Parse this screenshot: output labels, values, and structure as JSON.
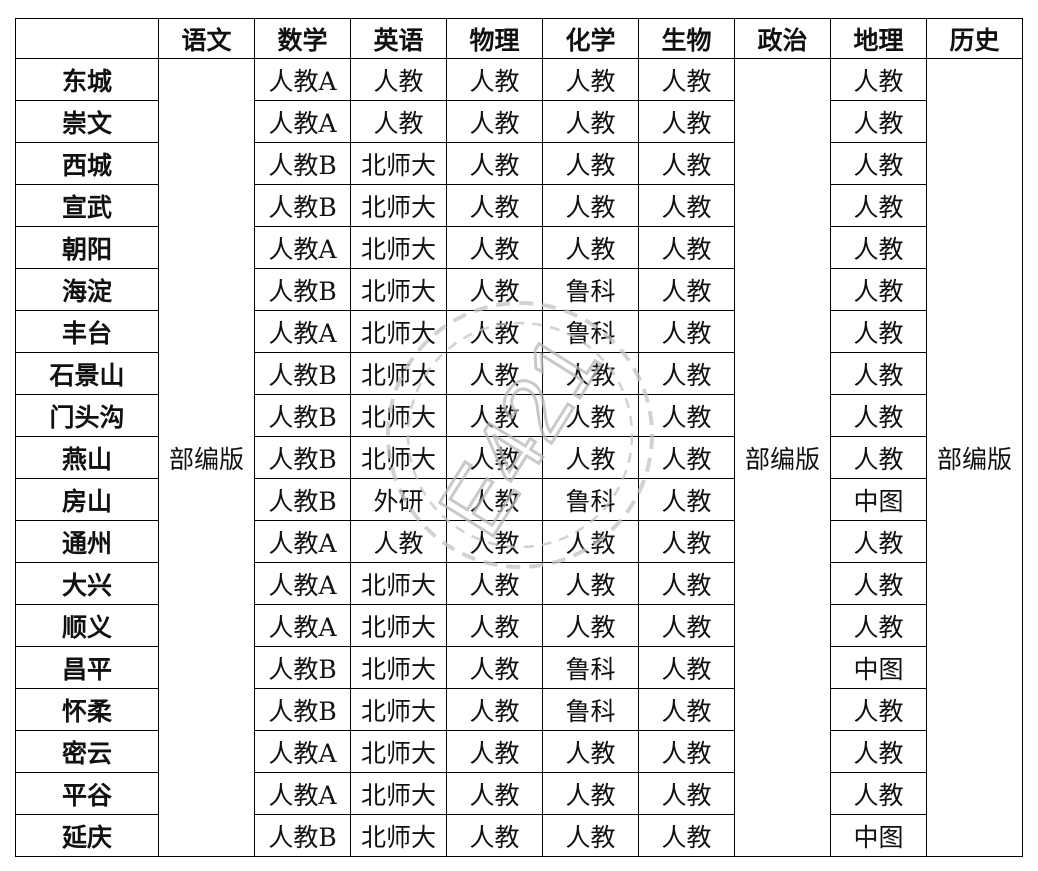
{
  "headers": [
    "",
    "语文",
    "数学",
    "英语",
    "物理",
    "化学",
    "生物",
    "政治",
    "地理",
    "历史"
  ],
  "merged": {
    "yuwen": "部编版",
    "zhengzhi": "部编版",
    "lishi": "部编版"
  },
  "rows": [
    {
      "district": "东城",
      "shuxue": "人教A",
      "yingyu": "人教",
      "wuli": "人教",
      "huaxue": "人教",
      "shengwu": "人教",
      "dili": "人教"
    },
    {
      "district": "崇文",
      "shuxue": "人教A",
      "yingyu": "人教",
      "wuli": "人教",
      "huaxue": "人教",
      "shengwu": "人教",
      "dili": "人教"
    },
    {
      "district": "西城",
      "shuxue": "人教B",
      "yingyu": "北师大",
      "wuli": "人教",
      "huaxue": "人教",
      "shengwu": "人教",
      "dili": "人教"
    },
    {
      "district": "宣武",
      "shuxue": "人教B",
      "yingyu": "北师大",
      "wuli": "人教",
      "huaxue": "人教",
      "shengwu": "人教",
      "dili": "人教"
    },
    {
      "district": "朝阳",
      "shuxue": "人教A",
      "yingyu": "北师大",
      "wuli": "人教",
      "huaxue": "人教",
      "shengwu": "人教",
      "dili": "人教"
    },
    {
      "district": "海淀",
      "shuxue": "人教B",
      "yingyu": "北师大",
      "wuli": "人教",
      "huaxue": "鲁科",
      "shengwu": "人教",
      "dili": "人教"
    },
    {
      "district": "丰台",
      "shuxue": "人教A",
      "yingyu": "北师大",
      "wuli": "人教",
      "huaxue": "鲁科",
      "shengwu": "人教",
      "dili": "人教"
    },
    {
      "district": "石景山",
      "shuxue": "人教B",
      "yingyu": "北师大",
      "wuli": "人教",
      "huaxue": "人教",
      "shengwu": "人教",
      "dili": "人教"
    },
    {
      "district": "门头沟",
      "shuxue": "人教B",
      "yingyu": "北师大",
      "wuli": "人教",
      "huaxue": "人教",
      "shengwu": "人教",
      "dili": "人教"
    },
    {
      "district": "燕山",
      "shuxue": "人教B",
      "yingyu": "北师大",
      "wuli": "人教",
      "huaxue": "人教",
      "shengwu": "人教",
      "dili": "人教"
    },
    {
      "district": "房山",
      "shuxue": "人教B",
      "yingyu": "外研",
      "wuli": "人教",
      "huaxue": "鲁科",
      "shengwu": "人教",
      "dili": "中图"
    },
    {
      "district": "通州",
      "shuxue": "人教A",
      "yingyu": "人教",
      "wuli": "人教",
      "huaxue": "人教",
      "shengwu": "人教",
      "dili": "人教"
    },
    {
      "district": "大兴",
      "shuxue": "人教A",
      "yingyu": "北师大",
      "wuli": "人教",
      "huaxue": "人教",
      "shengwu": "人教",
      "dili": "人教"
    },
    {
      "district": "顺义",
      "shuxue": "人教A",
      "yingyu": "北师大",
      "wuli": "人教",
      "huaxue": "人教",
      "shengwu": "人教",
      "dili": "人教"
    },
    {
      "district": "昌平",
      "shuxue": "人教B",
      "yingyu": "北师大",
      "wuli": "人教",
      "huaxue": "鲁科",
      "shengwu": "人教",
      "dili": "中图"
    },
    {
      "district": "怀柔",
      "shuxue": "人教B",
      "yingyu": "北师大",
      "wuli": "人教",
      "huaxue": "鲁科",
      "shengwu": "人教",
      "dili": "人教"
    },
    {
      "district": "密云",
      "shuxue": "人教A",
      "yingyu": "北师大",
      "wuli": "人教",
      "huaxue": "人教",
      "shengwu": "人教",
      "dili": "人教"
    },
    {
      "district": "平谷",
      "shuxue": "人教A",
      "yingyu": "北师大",
      "wuli": "人教",
      "huaxue": "人教",
      "shengwu": "人教",
      "dili": "人教"
    },
    {
      "district": "延庆",
      "shuxue": "人教B",
      "yingyu": "北师大",
      "wuli": "人教",
      "huaxue": "人教",
      "shengwu": "人教",
      "dili": "中图"
    }
  ],
  "watermark": {
    "text": "E421",
    "color": "#bdbdbd"
  }
}
